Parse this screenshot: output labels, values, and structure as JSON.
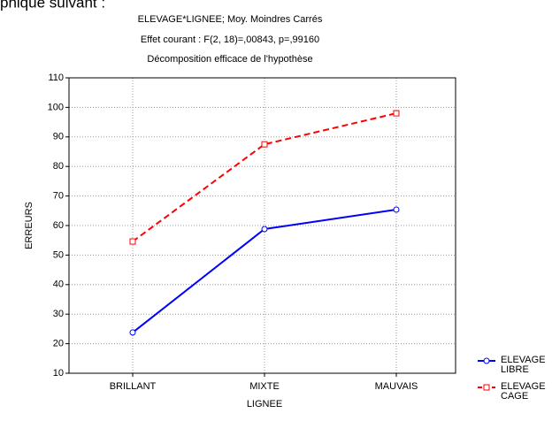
{
  "caption": "phique suivant :",
  "chart_data": {
    "type": "line",
    "title": "ELEVAGE*LIGNEE; Moy. Moindres Carrés",
    "subtitle": "Effet courant : F(2, 18)=,00843, p=,99160",
    "note": "Décomposition efficace de l'hypothèse",
    "x_label": "LIGNEE",
    "y_label": "ERREURS",
    "categories": [
      "BRILLANT",
      "MIXTE",
      "MAUVAIS"
    ],
    "series": [
      {
        "name": "ELEVAGE LIBRE",
        "color": "#0000ff",
        "line_style": "solid",
        "marker": "circle",
        "values": [
          23.8,
          58.8,
          65.4
        ]
      },
      {
        "name": "ELEVAGE CAGE",
        "color": "#ff0000",
        "line_style": "dashed",
        "marker": "square",
        "values": [
          54.6,
          87.5,
          98
        ]
      }
    ],
    "ylim": [
      10,
      110
    ],
    "yticks": [
      10,
      20,
      30,
      40,
      50,
      60,
      70,
      80,
      90,
      100,
      110
    ],
    "grid": true,
    "legend": "bottom-right"
  }
}
